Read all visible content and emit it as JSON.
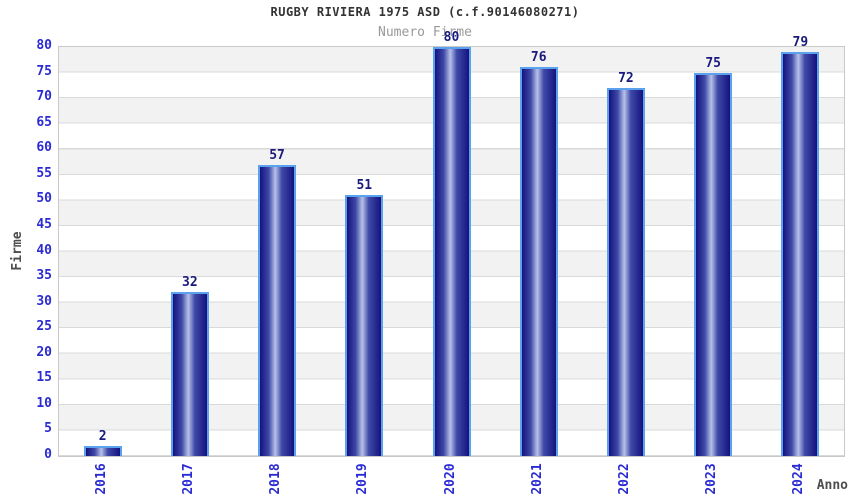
{
  "header": {
    "title": "RUGBY RIVIERA 1975 ASD (c.f.90146080271)",
    "subtitle": "Numero Firme"
  },
  "chart_data": {
    "type": "bar",
    "title": "RUGBY RIVIERA 1975 ASD (c.f.90146080271)",
    "subtitle": "Numero Firme",
    "categories": [
      "2016",
      "2017",
      "2018",
      "2019",
      "2020",
      "2021",
      "2022",
      "2023",
      "2024"
    ],
    "values": [
      2,
      32,
      57,
      51,
      80,
      76,
      72,
      75,
      79
    ],
    "xlabel": "Anno",
    "ylabel": "Firme",
    "ylim": [
      0,
      80
    ],
    "y_tick_step": 5,
    "y_ticks": [
      0,
      5,
      10,
      15,
      20,
      25,
      30,
      35,
      40,
      45,
      50,
      55,
      60,
      65,
      70,
      75,
      80
    ],
    "grid": "horizontal gridlines every 5 units with alternating white/gray bands",
    "legend": "none",
    "bar_value_labels_shown": true,
    "x_tick_rotation_degrees": -90
  },
  "colors": {
    "background": "#ffffff",
    "title_color": "#333333",
    "subtitle_color": "#999999",
    "axis_title_color": "#4d4d4d",
    "tick_label_blue": "#2b2bd4",
    "value_label_navy": "#1a1a7c",
    "bar_edge_navy": "#15127e",
    "bar_mid_navy": "#3f4aa8",
    "bar_highlight": "#b7c1e8",
    "bar_border_blue": "#5aa2ee",
    "stripe_gray": "#f2f2f2",
    "grid_line": "#d9d9d9",
    "plot_border": "#c9c9c9"
  }
}
